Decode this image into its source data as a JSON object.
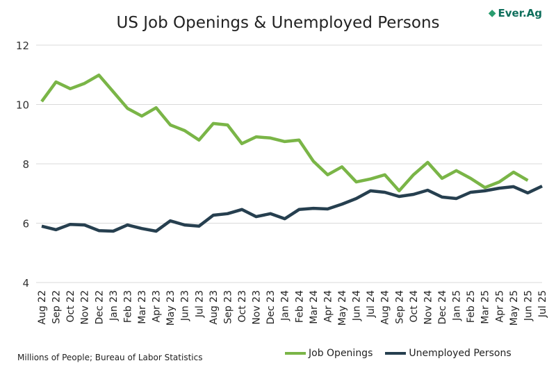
{
  "logo_text": "Ever.Ag",
  "footer": {
    "source": "Millions of People; Bureau of Labor Statistics"
  },
  "chart_data": {
    "type": "line",
    "title": "US Job Openings & Unemployed Persons",
    "xlabel": "",
    "ylabel": "",
    "ylim": [
      4,
      12
    ],
    "yticks": [
      "4",
      "6",
      "8",
      "10",
      "12"
    ],
    "grid": true,
    "legend": "bottom-right",
    "categories": [
      "Aug 22",
      "Sep 22",
      "Oct 22",
      "Nov 22",
      "Dec 22",
      "Jan 23",
      "Feb 23",
      "Mar 23",
      "Apr 23",
      "May 23",
      "Jun 23",
      "Jul 23",
      "Aug 23",
      "Sep 23",
      "Oct 23",
      "Nov 23",
      "Dec 23",
      "Jan 24",
      "Feb 24",
      "Mar 24",
      "Apr 24",
      "May 24",
      "Jun 24",
      "Jul 24",
      "Aug 24",
      "Sep 24",
      "Oct 24",
      "Nov 24",
      "Dec 24",
      "Jan 25",
      "Feb 25",
      "Mar 25",
      "Apr 25",
      "May 25",
      "Jun 25",
      "Jul 25"
    ],
    "series": [
      {
        "name": "Job Openings",
        "color": "#7ab547",
        "values": [
          10.1,
          10.76,
          10.53,
          10.71,
          10.99,
          10.43,
          9.87,
          9.61,
          9.89,
          9.31,
          9.12,
          8.8,
          9.36,
          9.31,
          8.68,
          8.91,
          8.87,
          8.75,
          8.8,
          8.09,
          7.63,
          7.9,
          7.39,
          7.49,
          7.63,
          7.09,
          7.63,
          8.05,
          7.51,
          7.77,
          7.51,
          7.2,
          7.39,
          7.72,
          7.44,
          null
        ]
      },
      {
        "name": "Unemployed Persons",
        "color": "#263f4f",
        "values": [
          5.9,
          5.78,
          5.96,
          5.94,
          5.75,
          5.73,
          5.94,
          5.82,
          5.73,
          6.08,
          5.94,
          5.9,
          6.27,
          6.32,
          6.46,
          6.22,
          6.32,
          6.15,
          6.46,
          6.5,
          6.48,
          6.64,
          6.83,
          7.09,
          7.04,
          6.9,
          6.97,
          7.11,
          6.88,
          6.83,
          7.04,
          7.09,
          7.18,
          7.23,
          7.02,
          7.25
        ]
      }
    ]
  }
}
